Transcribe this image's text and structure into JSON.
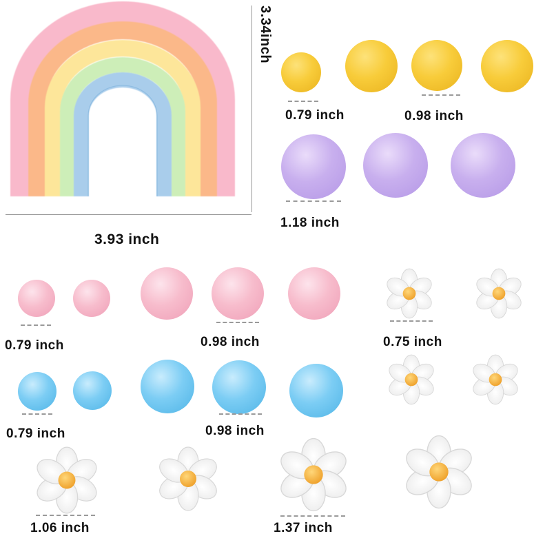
{
  "labels": {
    "rainbow_height": "3.34inch",
    "rainbow_width": "3.93 inch",
    "yellow_small": "0.79 inch",
    "yellow_large": "0.98 inch",
    "purple": "1.18 inch",
    "pink_small": "0.79 inch",
    "pink_large": "0.98 inch",
    "daisy_small": "0.75 inch",
    "blue_small": "0.79 inch",
    "blue_large": "0.98 inch",
    "daisy_medium": "1.06 inch",
    "daisy_large": "1.37 inch"
  },
  "colors": {
    "yellow": "#f8cc3a",
    "purple": "#c8afee",
    "pink": "#f7bccc",
    "blue": "#7ccdf4",
    "daisy_petal": "#ffffff",
    "daisy_center": "#f4b63c"
  }
}
